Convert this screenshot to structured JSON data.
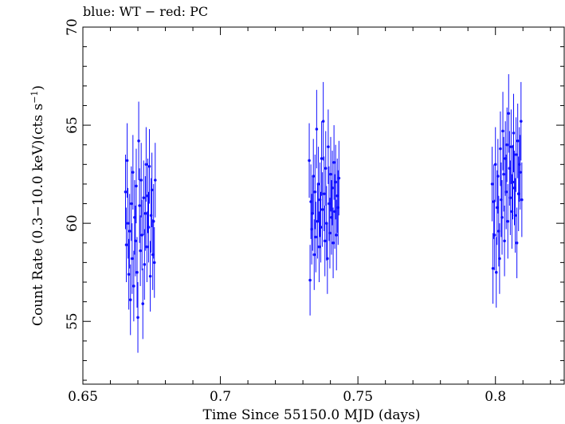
{
  "chart_data": {
    "type": "scatter",
    "title": "blue: WT − red: PC",
    "xlabel": "Time Since 55150.0 MJD (days)",
    "ylabel": "Count Rate (0.3−10.0 keV)(cts s",
    "ylabel_sup": "−1",
    "ylabel_close": ")",
    "xlim": [
      0.65,
      0.825
    ],
    "ylim": [
      51.8,
      70
    ],
    "xticks": [
      "0.65",
      "0.7",
      "0.75",
      "0.8"
    ],
    "xtick_values": [
      0.65,
      0.7,
      0.75,
      0.8
    ],
    "yticks": [
      "55",
      "60",
      "65",
      "70"
    ],
    "ytick_values": [
      55,
      60,
      65,
      70
    ],
    "grid": false,
    "colors": {
      "WT": "#1010ff",
      "PC": "#ff0000"
    },
    "series": [
      {
        "name": "WT",
        "x": [
          0.6655,
          0.6658,
          0.6661,
          0.6664,
          0.6667,
          0.667,
          0.6673,
          0.6676,
          0.6679,
          0.6682,
          0.6685,
          0.6688,
          0.6691,
          0.6694,
          0.6697,
          0.67,
          0.6703,
          0.6706,
          0.6709,
          0.6712,
          0.6715,
          0.6718,
          0.6721,
          0.6724,
          0.6727,
          0.673,
          0.6733,
          0.6736,
          0.6739,
          0.6742,
          0.6745,
          0.6748,
          0.6751,
          0.6754,
          0.6757,
          0.676,
          0.6763,
          0.7323,
          0.7326,
          0.7329,
          0.7332,
          0.7335,
          0.7338,
          0.7341,
          0.7344,
          0.7347,
          0.735,
          0.7353,
          0.7356,
          0.7359,
          0.7362,
          0.7365,
          0.7368,
          0.7371,
          0.7374,
          0.7377,
          0.738,
          0.7383,
          0.7386,
          0.7389,
          0.7392,
          0.7395,
          0.7398,
          0.7401,
          0.7404,
          0.7407,
          0.741,
          0.7413,
          0.7416,
          0.7419,
          0.7422,
          0.7425,
          0.7428,
          0.7431,
          0.7988,
          0.7991,
          0.7994,
          0.7997,
          0.8,
          0.8003,
          0.8006,
          0.8009,
          0.8012,
          0.8015,
          0.8018,
          0.8021,
          0.8024,
          0.8027,
          0.803,
          0.8033,
          0.8036,
          0.8039,
          0.8042,
          0.8045,
          0.8048,
          0.8051,
          0.8054,
          0.8057,
          0.806,
          0.8063,
          0.8066,
          0.8069,
          0.8072,
          0.8075,
          0.8078,
          0.8081,
          0.8084,
          0.8087,
          0.809,
          0.8093,
          0.8096
        ],
        "y": [
          61.6,
          58.9,
          63.2,
          60.0,
          57.4,
          59.6,
          56.1,
          61.0,
          58.2,
          62.6,
          56.8,
          60.3,
          59.1,
          61.9,
          57.5,
          55.2,
          64.2,
          60.9,
          58.6,
          62.2,
          59.4,
          55.9,
          61.3,
          57.9,
          60.5,
          63.0,
          58.8,
          61.4,
          59.8,
          62.9,
          57.3,
          60.4,
          61.7,
          58.4,
          60.1,
          58.0,
          62.2,
          63.2,
          57.1,
          61.1,
          59.7,
          60.5,
          62.4,
          58.4,
          61.6,
          59.3,
          64.8,
          60.1,
          62.0,
          58.8,
          61.2,
          59.8,
          63.3,
          60.7,
          65.2,
          61.5,
          59.1,
          62.8,
          60.0,
          58.2,
          63.9,
          61.0,
          59.5,
          62.5,
          60.3,
          61.8,
          59.0,
          63.1,
          60.6,
          62.1,
          59.4,
          61.4,
          60.8,
          62.3,
          62.0,
          57.7,
          61.1,
          59.4,
          63.0,
          57.5,
          60.8,
          62.4,
          59.6,
          58.2,
          63.8,
          61.2,
          60.3,
          64.7,
          62.5,
          59.1,
          63.3,
          61.6,
          64.0,
          60.1,
          65.6,
          62.8,
          61.3,
          63.9,
          60.6,
          62.1,
          64.6,
          61.8,
          60.4,
          63.5,
          59.0,
          64.2,
          61.5,
          63.0,
          62.6,
          65.2,
          61.2
        ],
        "err": [
          1.9,
          1.9,
          1.9,
          1.8,
          1.8,
          1.9,
          1.8,
          1.9,
          1.8,
          1.9,
          1.8,
          1.9,
          1.8,
          1.9,
          1.8,
          1.8,
          2.0,
          1.9,
          1.8,
          1.9,
          1.8,
          1.8,
          1.9,
          1.8,
          1.9,
          1.9,
          1.8,
          1.9,
          1.8,
          1.9,
          1.8,
          1.9,
          1.9,
          1.8,
          1.9,
          1.8,
          1.9,
          1.9,
          1.8,
          1.9,
          1.8,
          1.9,
          1.9,
          1.8,
          1.9,
          1.8,
          2.0,
          1.9,
          1.9,
          1.8,
          1.9,
          1.8,
          1.9,
          1.9,
          2.0,
          1.9,
          1.8,
          1.9,
          1.9,
          1.8,
          1.9,
          1.9,
          1.8,
          1.9,
          1.9,
          1.9,
          1.8,
          1.9,
          1.9,
          1.9,
          1.8,
          1.9,
          1.9,
          1.9,
          1.9,
          1.8,
          1.9,
          1.8,
          1.9,
          1.8,
          1.9,
          1.9,
          1.8,
          1.8,
          1.9,
          1.9,
          1.9,
          2.0,
          1.9,
          1.8,
          1.9,
          1.9,
          1.9,
          1.9,
          2.0,
          1.9,
          1.9,
          1.9,
          1.9,
          1.9,
          2.0,
          1.9,
          1.9,
          1.9,
          1.8,
          1.9,
          1.9,
          1.9,
          1.9,
          2.0,
          1.9
        ]
      }
    ]
  }
}
